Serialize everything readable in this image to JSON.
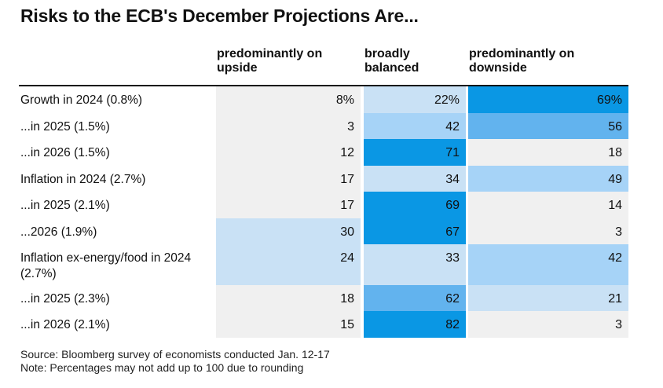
{
  "chart_data": {
    "type": "table",
    "title": "Risks to the ECB's December Projections Are...",
    "columns": [
      "predominantly on upside",
      "broadly balanced",
      "predominantly on downside"
    ],
    "rows": [
      {
        "label": "Growth in 2024 (0.8%)",
        "values": [
          "8%",
          "22%",
          "69%"
        ],
        "levels": [
          1,
          2,
          5
        ]
      },
      {
        "label": "...in 2025 (1.5%)",
        "values": [
          "3",
          "42",
          "56"
        ],
        "levels": [
          1,
          3,
          4
        ]
      },
      {
        "label": "...in 2026 (1.5%)",
        "values": [
          "12",
          "71",
          "18"
        ],
        "levels": [
          1,
          5,
          1
        ]
      },
      {
        "label": "Inflation in 2024 (2.7%)",
        "values": [
          "17",
          "34",
          "49"
        ],
        "levels": [
          1,
          2,
          3
        ]
      },
      {
        "label": "...in 2025 (2.1%)",
        "values": [
          "17",
          "69",
          "14"
        ],
        "levels": [
          1,
          5,
          1
        ]
      },
      {
        "label": "...2026 (1.9%)",
        "values": [
          "30",
          "67",
          "3"
        ],
        "levels": [
          2,
          5,
          1
        ]
      },
      {
        "label": "Inflation ex-energy/food in 2024 (2.7%)",
        "values": [
          "24",
          "33",
          "42"
        ],
        "levels": [
          2,
          2,
          3
        ]
      },
      {
        "label": "...in 2025 (2.3%)",
        "values": [
          "18",
          "62",
          "21"
        ],
        "levels": [
          1,
          4,
          2
        ]
      },
      {
        "label": "...in 2026 (2.1%)",
        "values": [
          "15",
          "82",
          "3"
        ],
        "levels": [
          1,
          5,
          1
        ]
      }
    ],
    "colors": {
      "1": "#f0f0f0",
      "2": "#c9e1f5",
      "3": "#a6d3f7",
      "4": "#62b3ee",
      "5": "#0a97e4"
    }
  },
  "notes": {
    "source": "Source: Bloomberg survey of economists conducted Jan. 12-17",
    "note": "Note: Percentages may not add up to 100 due to rounding"
  }
}
